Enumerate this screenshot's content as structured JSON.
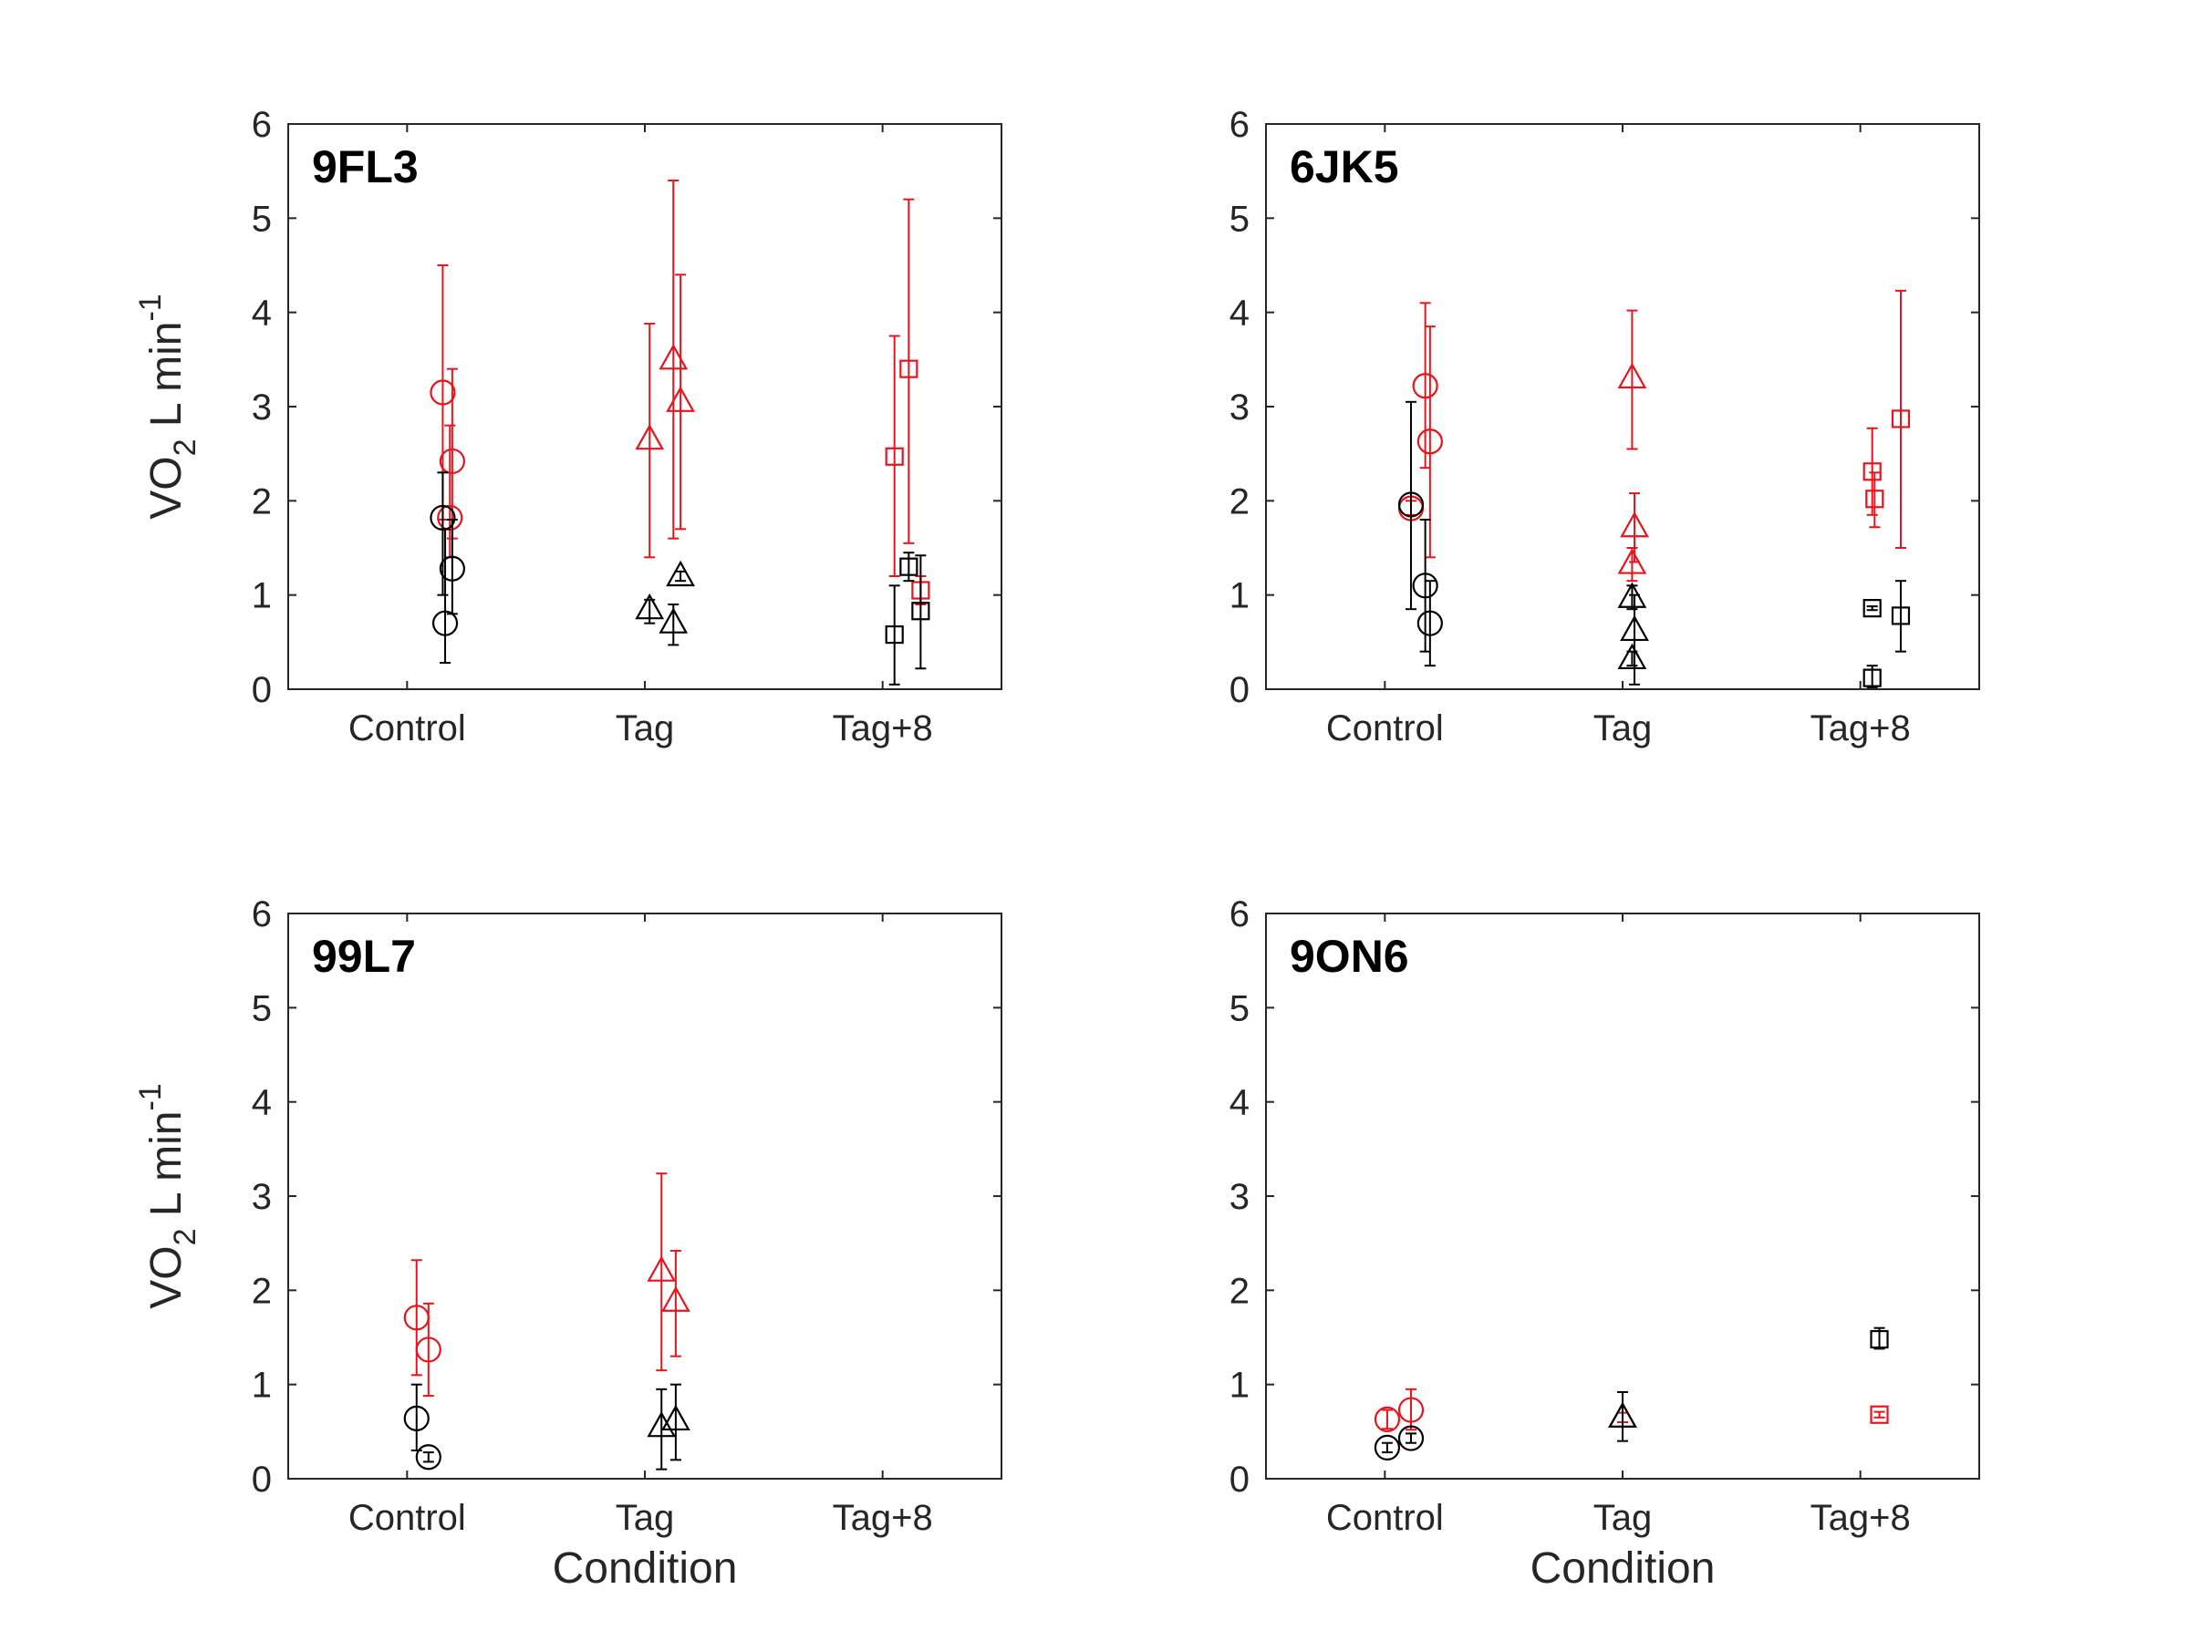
{
  "colors": {
    "red": "#e8141b",
    "black": "#000000",
    "axis": "#262626"
  },
  "chart_data": [
    {
      "type": "scatter",
      "title": "9FL3",
      "xlabel": "",
      "ylabel": "VO2 L min-1",
      "ylabel_parts": {
        "base": "VO",
        "sub": "2",
        "mid": " L min",
        "sup": "-1"
      },
      "categories": [
        "Control",
        "Tag",
        "Tag+8"
      ],
      "ylim": [
        0,
        6
      ],
      "yticks": [
        0,
        1,
        2,
        3,
        4,
        5,
        6
      ],
      "series": [
        {
          "color": "red",
          "points": [
            {
              "cat": 0,
              "offset": 0.15,
              "y": 3.15,
              "lo": 1.8,
              "hi": 4.5,
              "marker": "circle"
            },
            {
              "cat": 0,
              "offset": 0.18,
              "y": 1.82,
              "lo": 1.4,
              "hi": 2.8,
              "marker": "circle"
            },
            {
              "cat": 0,
              "offset": 0.19,
              "y": 2.42,
              "lo": 1.6,
              "hi": 3.4,
              "marker": "circle"
            },
            {
              "cat": 1,
              "offset": 0.02,
              "y": 2.65,
              "lo": 1.4,
              "hi": 3.88,
              "marker": "triangle"
            },
            {
              "cat": 1,
              "offset": 0.12,
              "y": 3.5,
              "lo": 1.6,
              "hi": 5.4,
              "marker": "triangle"
            },
            {
              "cat": 1,
              "offset": 0.15,
              "y": 3.05,
              "lo": 1.7,
              "hi": 4.4,
              "marker": "triangle"
            },
            {
              "cat": 2,
              "offset": 0.05,
              "y": 2.47,
              "lo": 1.2,
              "hi": 3.75,
              "marker": "square"
            },
            {
              "cat": 2,
              "offset": 0.11,
              "y": 3.4,
              "lo": 1.55,
              "hi": 5.2,
              "marker": "square"
            },
            {
              "cat": 2,
              "offset": 0.16,
              "y": 1.05,
              "lo": 0.9,
              "hi": 1.2,
              "marker": "square"
            }
          ]
        },
        {
          "color": "black",
          "points": [
            {
              "cat": 0,
              "offset": 0.15,
              "y": 1.82,
              "lo": 1.0,
              "hi": 2.3,
              "marker": "circle"
            },
            {
              "cat": 0,
              "offset": 0.16,
              "y": 0.7,
              "lo": 0.28,
              "hi": 1.7,
              "marker": "circle"
            },
            {
              "cat": 0,
              "offset": 0.19,
              "y": 1.28,
              "lo": 0.8,
              "hi": 1.8,
              "marker": "circle"
            },
            {
              "cat": 1,
              "offset": 0.02,
              "y": 0.85,
              "lo": 0.7,
              "hi": 0.95,
              "marker": "triangle"
            },
            {
              "cat": 1,
              "offset": 0.12,
              "y": 0.7,
              "lo": 0.47,
              "hi": 0.9,
              "marker": "triangle"
            },
            {
              "cat": 1,
              "offset": 0.15,
              "y": 1.2,
              "lo": 1.15,
              "hi": 1.25,
              "marker": "triangle"
            },
            {
              "cat": 2,
              "offset": 0.05,
              "y": 0.58,
              "lo": 0.05,
              "hi": 1.1,
              "marker": "square"
            },
            {
              "cat": 2,
              "offset": 0.11,
              "y": 1.3,
              "lo": 1.15,
              "hi": 1.45,
              "marker": "square"
            },
            {
              "cat": 2,
              "offset": 0.16,
              "y": 0.83,
              "lo": 0.22,
              "hi": 1.42,
              "marker": "square"
            }
          ]
        }
      ]
    },
    {
      "type": "scatter",
      "title": "6JK5",
      "xlabel": "",
      "ylabel": "",
      "categories": [
        "Control",
        "Tag",
        "Tag+8"
      ],
      "ylim": [
        0,
        6
      ],
      "yticks": [
        0,
        1,
        2,
        3,
        4,
        5,
        6
      ],
      "series": [
        {
          "color": "red",
          "points": [
            {
              "cat": 0,
              "offset": 0.11,
              "y": 1.92,
              "lo": 1.85,
              "hi": 2.0,
              "marker": "circle"
            },
            {
              "cat": 0,
              "offset": 0.17,
              "y": 3.22,
              "lo": 2.35,
              "hi": 4.1,
              "marker": "circle"
            },
            {
              "cat": 0,
              "offset": 0.19,
              "y": 2.63,
              "lo": 1.4,
              "hi": 3.85,
              "marker": "circle"
            },
            {
              "cat": 1,
              "offset": 0.04,
              "y": 3.3,
              "lo": 2.55,
              "hi": 4.02,
              "marker": "triangle"
            },
            {
              "cat": 1,
              "offset": 0.05,
              "y": 1.72,
              "lo": 1.35,
              "hi": 2.08,
              "marker": "triangle"
            },
            {
              "cat": 1,
              "offset": 0.04,
              "y": 1.33,
              "lo": 1.15,
              "hi": 1.5,
              "marker": "triangle"
            },
            {
              "cat": 2,
              "offset": 0.05,
              "y": 2.31,
              "lo": 1.85,
              "hi": 2.77,
              "marker": "square"
            },
            {
              "cat": 2,
              "offset": 0.06,
              "y": 2.02,
              "lo": 1.72,
              "hi": 2.3,
              "marker": "square"
            },
            {
              "cat": 2,
              "offset": 0.17,
              "y": 2.87,
              "lo": 1.5,
              "hi": 4.23,
              "marker": "square"
            }
          ]
        },
        {
          "color": "black",
          "points": [
            {
              "cat": 0,
              "offset": 0.11,
              "y": 1.96,
              "lo": 0.85,
              "hi": 3.05,
              "marker": "circle"
            },
            {
              "cat": 0,
              "offset": 0.17,
              "y": 1.1,
              "lo": 0.4,
              "hi": 1.8,
              "marker": "circle"
            },
            {
              "cat": 0,
              "offset": 0.19,
              "y": 0.7,
              "lo": 0.25,
              "hi": 1.15,
              "marker": "circle"
            },
            {
              "cat": 1,
              "offset": 0.04,
              "y": 0.97,
              "lo": 0.85,
              "hi": 1.1,
              "marker": "triangle"
            },
            {
              "cat": 1,
              "offset": 0.05,
              "y": 0.62,
              "lo": 0.05,
              "hi": 1.0,
              "marker": "triangle"
            },
            {
              "cat": 1,
              "offset": 0.04,
              "y": 0.32,
              "lo": 0.25,
              "hi": 0.4,
              "marker": "triangle"
            },
            {
              "cat": 2,
              "offset": 0.05,
              "y": 0.86,
              "lo": 0.84,
              "hi": 0.88,
              "marker": "square"
            },
            {
              "cat": 2,
              "offset": 0.05,
              "y": 0.12,
              "lo": 0.02,
              "hi": 0.25,
              "marker": "square"
            },
            {
              "cat": 2,
              "offset": 0.17,
              "y": 0.78,
              "lo": 0.4,
              "hi": 1.15,
              "marker": "square"
            }
          ]
        }
      ]
    },
    {
      "type": "scatter",
      "title": "99L7",
      "xlabel": "Condition",
      "ylabel": "VO2 L min-1",
      "ylabel_parts": {
        "base": "VO",
        "sub": "2",
        "mid": " L min",
        "sup": "-1"
      },
      "categories": [
        "Control",
        "Tag",
        "Tag+8"
      ],
      "ylim": [
        0,
        6
      ],
      "yticks": [
        0,
        1,
        2,
        3,
        4,
        5,
        6
      ],
      "series": [
        {
          "color": "red",
          "points": [
            {
              "cat": 0,
              "offset": 0.04,
              "y": 1.71,
              "lo": 1.1,
              "hi": 2.32,
              "marker": "circle"
            },
            {
              "cat": 0,
              "offset": 0.09,
              "y": 1.37,
              "lo": 0.88,
              "hi": 1.86,
              "marker": "circle"
            },
            {
              "cat": 1,
              "offset": 0.07,
              "y": 2.2,
              "lo": 1.15,
              "hi": 3.24,
              "marker": "triangle"
            },
            {
              "cat": 1,
              "offset": 0.13,
              "y": 1.88,
              "lo": 1.3,
              "hi": 2.42,
              "marker": "triangle"
            }
          ]
        },
        {
          "color": "black",
          "points": [
            {
              "cat": 0,
              "offset": 0.04,
              "y": 0.64,
              "lo": 0.3,
              "hi": 1.0,
              "marker": "circle"
            },
            {
              "cat": 0,
              "offset": 0.09,
              "y": 0.23,
              "lo": 0.18,
              "hi": 0.28,
              "marker": "circle"
            },
            {
              "cat": 1,
              "offset": 0.07,
              "y": 0.55,
              "lo": 0.1,
              "hi": 0.95,
              "marker": "triangle"
            },
            {
              "cat": 1,
              "offset": 0.13,
              "y": 0.62,
              "lo": 0.2,
              "hi": 1.0,
              "marker": "triangle"
            }
          ]
        }
      ]
    },
    {
      "type": "scatter",
      "title": "9ON6",
      "xlabel": "Condition",
      "ylabel": "",
      "categories": [
        "Control",
        "Tag",
        "Tag+8"
      ],
      "ylim": [
        0,
        6
      ],
      "yticks": [
        0,
        1,
        2,
        3,
        4,
        5,
        6
      ],
      "series": [
        {
          "color": "red",
          "points": [
            {
              "cat": 0,
              "offset": 0.01,
              "y": 0.63,
              "lo": 0.53,
              "hi": 0.73,
              "marker": "circle"
            },
            {
              "cat": 0,
              "offset": 0.11,
              "y": 0.73,
              "lo": 0.52,
              "hi": 0.95,
              "marker": "circle"
            },
            {
              "cat": 1,
              "offset": 0.0,
              "y": 0.65,
              "lo": 0.6,
              "hi": 0.7,
              "marker": "triangle"
            },
            {
              "cat": 2,
              "offset": 0.08,
              "y": 0.68,
              "lo": 0.65,
              "hi": 0.71,
              "marker": "square"
            }
          ]
        },
        {
          "color": "black",
          "points": [
            {
              "cat": 0,
              "offset": 0.01,
              "y": 0.33,
              "lo": 0.28,
              "hi": 0.38,
              "marker": "circle"
            },
            {
              "cat": 0,
              "offset": 0.11,
              "y": 0.43,
              "lo": 0.38,
              "hi": 0.48,
              "marker": "circle"
            },
            {
              "cat": 1,
              "offset": 0.0,
              "y": 0.65,
              "lo": 0.4,
              "hi": 0.92,
              "marker": "triangle"
            },
            {
              "cat": 2,
              "offset": 0.08,
              "y": 1.48,
              "lo": 1.38,
              "hi": 1.6,
              "marker": "square"
            }
          ]
        }
      ]
    }
  ]
}
